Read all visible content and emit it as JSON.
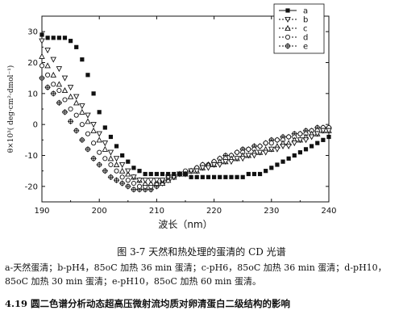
{
  "chart_data": {
    "type": "scatter",
    "title": "",
    "xlabel": "波长（nm）",
    "ylabel": "θ×10³( deg·cm²·dmol⁻¹)",
    "xlim": [
      190,
      240
    ],
    "ylim": [
      -25,
      35
    ],
    "xticks": [
      190,
      200,
      210,
      220,
      230,
      240
    ],
    "yticks": [
      -20,
      -10,
      0,
      10,
      20,
      30
    ],
    "grid": false,
    "legend_position": "top-right",
    "series": [
      {
        "name": "a",
        "marker": "filled-square",
        "x": [
          190,
          191,
          192,
          193,
          194,
          195,
          196,
          197,
          198,
          199,
          200,
          201,
          202,
          203,
          204,
          205,
          206,
          207,
          208,
          209,
          210,
          211,
          212,
          213,
          214,
          215,
          216,
          217,
          218,
          219,
          220,
          221,
          222,
          223,
          224,
          225,
          226,
          227,
          228,
          229,
          230,
          231,
          232,
          233,
          234,
          235,
          236,
          237,
          238,
          239,
          240
        ],
        "y": [
          29,
          28,
          28,
          28,
          28,
          27,
          25,
          21,
          16,
          10,
          4,
          -1,
          -4,
          -7,
          -10,
          -12,
          -14,
          -15,
          -16,
          -16,
          -16,
          -16,
          -16,
          -16,
          -16,
          -16,
          -17,
          -17,
          -17,
          -17,
          -17,
          -17,
          -17,
          -17,
          -17,
          -17,
          -16,
          -16,
          -16,
          -15,
          -14,
          -13,
          -12,
          -11,
          -10,
          -9,
          -8,
          -7,
          -6,
          -5,
          -4
        ]
      },
      {
        "name": "b",
        "marker": "down-triangle",
        "x": [
          190,
          191,
          192,
          193,
          194,
          195,
          196,
          197,
          198,
          199,
          200,
          201,
          202,
          203,
          204,
          205,
          206,
          207,
          208,
          209,
          210,
          211,
          212,
          213,
          214,
          215,
          216,
          217,
          218,
          219,
          220,
          221,
          222,
          223,
          224,
          225,
          226,
          227,
          228,
          229,
          230,
          231,
          232,
          233,
          234,
          235,
          236,
          237,
          238,
          239,
          240
        ],
        "y": [
          27,
          24,
          21,
          18,
          15,
          12,
          9,
          6,
          3,
          0,
          -3,
          -6,
          -9,
          -11,
          -13,
          -15,
          -17,
          -18,
          -18,
          -18,
          -18,
          -18,
          -17,
          -17,
          -16,
          -16,
          -15,
          -15,
          -14,
          -14,
          -13,
          -13,
          -12,
          -12,
          -11,
          -11,
          -10,
          -10,
          -9,
          -9,
          -8,
          -8,
          -7,
          -7,
          -6,
          -5,
          -5,
          -4,
          -3,
          -2,
          -2
        ]
      },
      {
        "name": "c",
        "marker": "up-triangle",
        "x": [
          190,
          191,
          192,
          193,
          194,
          195,
          196,
          197,
          198,
          199,
          200,
          201,
          202,
          203,
          204,
          205,
          206,
          207,
          208,
          209,
          210,
          211,
          212,
          213,
          214,
          215,
          216,
          217,
          218,
          219,
          220,
          221,
          222,
          223,
          224,
          225,
          226,
          227,
          228,
          229,
          230,
          231,
          232,
          233,
          234,
          235,
          236,
          237,
          238,
          239,
          240
        ],
        "y": [
          22,
          19,
          16,
          13,
          11,
          9,
          7,
          4,
          1,
          -2,
          -5,
          -8,
          -11,
          -13,
          -15,
          -16,
          -17,
          -18,
          -19,
          -19,
          -19,
          -19,
          -18,
          -17,
          -16,
          -16,
          -15,
          -15,
          -14,
          -13,
          -13,
          -12,
          -12,
          -11,
          -11,
          -10,
          -10,
          -9,
          -9,
          -8,
          -8,
          -7,
          -6,
          -6,
          -5,
          -5,
          -4,
          -3,
          -3,
          -2,
          -2
        ]
      },
      {
        "name": "d",
        "marker": "open-circle",
        "x": [
          190,
          191,
          192,
          193,
          194,
          195,
          196,
          197,
          198,
          199,
          200,
          201,
          202,
          203,
          204,
          205,
          206,
          207,
          208,
          209,
          210,
          211,
          212,
          213,
          214,
          215,
          216,
          217,
          218,
          219,
          220,
          221,
          222,
          223,
          224,
          225,
          226,
          227,
          228,
          229,
          230,
          231,
          232,
          233,
          234,
          235,
          236,
          237,
          238,
          239,
          240
        ],
        "y": [
          19,
          16,
          13,
          11,
          8,
          5,
          3,
          0,
          -3,
          -6,
          -9,
          -11,
          -13,
          -15,
          -17,
          -18,
          -19,
          -20,
          -20,
          -20,
          -19,
          -18,
          -17,
          -17,
          -16,
          -15,
          -15,
          -14,
          -13,
          -13,
          -12,
          -11,
          -11,
          -10,
          -9,
          -9,
          -8,
          -8,
          -7,
          -6,
          -6,
          -5,
          -5,
          -4,
          -4,
          -3,
          -3,
          -2,
          -2,
          -1,
          -1
        ]
      },
      {
        "name": "e",
        "marker": "cross-circle",
        "x": [
          190,
          191,
          192,
          193,
          194,
          195,
          196,
          197,
          198,
          199,
          200,
          201,
          202,
          203,
          204,
          205,
          206,
          207,
          208,
          209,
          210,
          211,
          212,
          213,
          214,
          215,
          216,
          217,
          218,
          219,
          220,
          221,
          222,
          223,
          224,
          225,
          226,
          227,
          228,
          229,
          230,
          231,
          232,
          233,
          234,
          235,
          236,
          237,
          238,
          239,
          240
        ],
        "y": [
          15,
          12,
          10,
          7,
          4,
          1,
          -2,
          -5,
          -8,
          -11,
          -13,
          -15,
          -17,
          -18,
          -19,
          -20,
          -21,
          -21,
          -21,
          -21,
          -20,
          -19,
          -18,
          -17,
          -16,
          -16,
          -15,
          -14,
          -13,
          -13,
          -12,
          -11,
          -10,
          -10,
          -9,
          -8,
          -8,
          -7,
          -7,
          -6,
          -5,
          -5,
          -4,
          -4,
          -3,
          -3,
          -2,
          -2,
          -1,
          -1,
          -1
        ]
      }
    ]
  },
  "caption": "图 3-7 天然和热处理的蛋清的 CD 光谱",
  "note": "a-天然蛋清；b-pH4，85oC 加热 36 min 蛋清；c-pH6，85oC 加热 36 min 蛋清；d-pH10，85oC 加热 30 min 蛋清；e-pH10，85oC 加热 60 min 蛋清。",
  "section_heading": "4.19 圆二色谱分析动态超高压微射流均质对卵清蛋白二级结构的影响"
}
